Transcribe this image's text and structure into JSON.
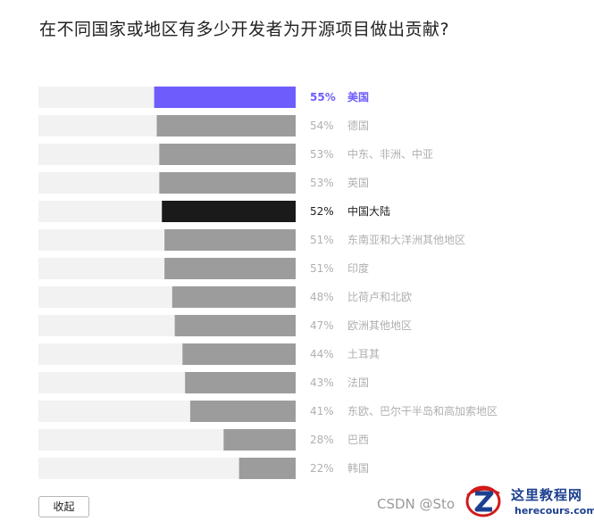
{
  "title": "在不同国家或地区有多少开发者为开源项目做出贡献?",
  "collapse_label": "收起",
  "watermark_text": "CSDN @Sto",
  "logo": {
    "title": "这里教程网",
    "url": "herecours.com"
  },
  "colors": {
    "track": "#f2f2f2",
    "bar_default": "#9c9c9c",
    "highlight_us": "#6e5dfc",
    "highlight_cn": "#1a1a1a",
    "label_default": "#b0b0b0",
    "label_cn": "#222222"
  },
  "chart_data": {
    "type": "bar",
    "orientation": "horizontal",
    "categories": [
      "美国",
      "德国",
      "中东、非洲、中亚",
      "英国",
      "中国大陆",
      "东南亚和大洋洲其他地区",
      "印度",
      "比荷卢和北欧",
      "欧洲其他地区",
      "土耳其",
      "法国",
      "东欧、巴尔干半岛和高加索地区",
      "巴西",
      "韩国"
    ],
    "values": [
      55,
      54,
      53,
      53,
      52,
      51,
      51,
      48,
      47,
      44,
      43,
      41,
      28,
      22
    ],
    "value_labels": [
      "55%",
      "54%",
      "53%",
      "53%",
      "52%",
      "51%",
      "51%",
      "48%",
      "47%",
      "44%",
      "43%",
      "41%",
      "28%",
      "22%"
    ],
    "highlight": {
      "美国": "highlight_us",
      "中国大陆": "highlight_cn"
    },
    "xlim": [
      0,
      100
    ],
    "grid": false,
    "legend": "none"
  }
}
